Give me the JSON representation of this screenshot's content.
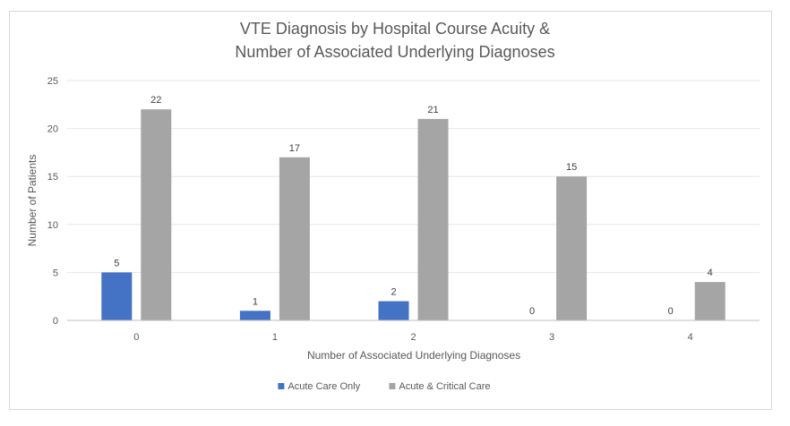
{
  "chart_data": {
    "type": "bar",
    "title_line1": "VTE Diagnosis by Hospital Course Acuity &",
    "title_line2": "Number of Associated Underlying Diagnoses",
    "xlabel": "Number of Associated Underlying Diagnoses",
    "ylabel": "Number of Patients",
    "categories": [
      "0",
      "1",
      "2",
      "3",
      "4"
    ],
    "ylim": [
      0,
      25
    ],
    "yticks": [
      0,
      5,
      10,
      15,
      20,
      25
    ],
    "grid": true,
    "legend_position": "bottom",
    "series": [
      {
        "name": "Acute Care Only",
        "color": "#4472c4",
        "values": [
          5,
          1,
          2,
          0,
          0
        ]
      },
      {
        "name": "Acute & Critical Care",
        "color": "#a5a5a5",
        "values": [
          22,
          17,
          21,
          15,
          4
        ]
      }
    ]
  }
}
